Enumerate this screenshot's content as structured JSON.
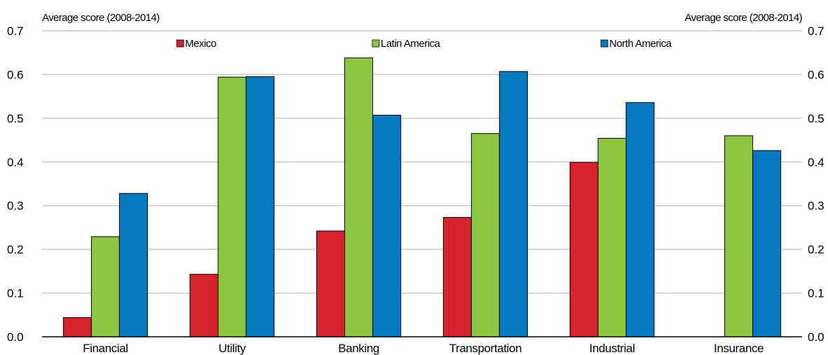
{
  "chart_data": {
    "type": "bar",
    "ylabel_left": "Average score (2008-2014)",
    "ylabel_right": "Average score (2008-2014)",
    "ylim": [
      0,
      0.7
    ],
    "yticks": [
      "0.0",
      "0.1",
      "0.2",
      "0.3",
      "0.4",
      "0.5",
      "0.6",
      "0.7"
    ],
    "categories": [
      "Financial",
      "Utility",
      "Banking",
      "Transportation",
      "Industrial",
      "Insurance"
    ],
    "series": [
      {
        "name": "Mexico",
        "color": "#d7242c",
        "values": [
          0.044,
          0.143,
          0.242,
          0.273,
          0.399,
          0.0
        ]
      },
      {
        "name": "Latin America",
        "color": "#8dc641",
        "values": [
          0.229,
          0.594,
          0.638,
          0.465,
          0.454,
          0.46
        ]
      },
      {
        "name": "North America",
        "color": "#0779c1",
        "values": [
          0.328,
          0.595,
          0.507,
          0.607,
          0.536,
          0.426
        ]
      }
    ],
    "grid": true,
    "legend_position": "top"
  }
}
